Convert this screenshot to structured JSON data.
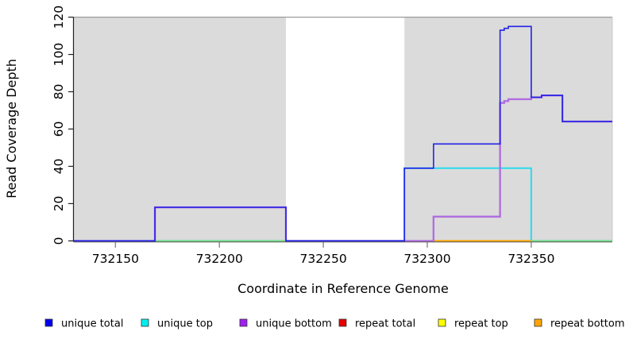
{
  "chart_data": {
    "type": "line",
    "subtype": "step-coverage",
    "title": "",
    "xlabel": "Coordinate in Reference Genome",
    "ylabel": "Read Coverage Depth",
    "xlim": [
      732130,
      732389
    ],
    "ylim": [
      0,
      120
    ],
    "x_ticks": [
      "732150",
      "732200",
      "732250",
      "732300",
      "732350"
    ],
    "x_tick_values": [
      732150,
      732200,
      732250,
      732300,
      732350
    ],
    "y_ticks": [
      "0",
      "20",
      "40",
      "60",
      "80",
      "100",
      "120"
    ],
    "y_tick_values": [
      0,
      20,
      40,
      60,
      80,
      100,
      120
    ],
    "grid": false,
    "legend_position": "bottom",
    "highlight_regions": {
      "color": "#dbdbdb",
      "ranges": [
        [
          732130,
          732232
        ],
        [
          732289,
          732389
        ]
      ]
    },
    "series": [
      {
        "name": "unique total",
        "color": "#2323e6",
        "stroke": 1.6,
        "segments": [
          [
            732130,
            732169,
            0
          ],
          [
            732169,
            732232,
            18
          ],
          [
            732232,
            732289,
            0
          ],
          [
            732289,
            732303,
            39
          ],
          [
            732303,
            732335,
            52
          ],
          [
            732335,
            732337,
            113
          ],
          [
            732337,
            732339,
            114
          ],
          [
            732339,
            732350,
            115
          ],
          [
            732350,
            732355,
            77
          ],
          [
            732355,
            732365,
            78
          ],
          [
            732365,
            732389,
            64
          ]
        ]
      },
      {
        "name": "unique top",
        "color": "#35dcec",
        "stroke": 2.2,
        "segments": [
          [
            732130,
            732289,
            0
          ],
          [
            732289,
            732350,
            39
          ],
          [
            732350,
            732389,
            0
          ]
        ]
      },
      {
        "name": "unique bottom",
        "color": "#b06fdf",
        "stroke": 2.4,
        "segments": [
          [
            732130,
            732169,
            0
          ],
          [
            732169,
            732232,
            18
          ],
          [
            732232,
            732303,
            0
          ],
          [
            732303,
            732335,
            13
          ],
          [
            732335,
            732337,
            74
          ],
          [
            732337,
            732339,
            75
          ],
          [
            732339,
            732350,
            76
          ],
          [
            732350,
            732355,
            77
          ],
          [
            732355,
            732365,
            78
          ],
          [
            732365,
            732389,
            64
          ]
        ]
      },
      {
        "name": "repeat total",
        "color": "#e60000",
        "stroke": 1.2,
        "segments": [
          [
            732130,
            732389,
            0
          ]
        ]
      },
      {
        "name": "repeat top",
        "color": "#ffff00",
        "stroke": 1.2,
        "segments": [
          [
            732130,
            732389,
            0
          ]
        ]
      },
      {
        "name": "repeat bottom",
        "color": "#ffa500",
        "stroke": 1.2,
        "segments": [
          [
            732130,
            732389,
            0
          ]
        ]
      }
    ],
    "baseline_overlays": [
      {
        "from": 732169,
        "to": 732232,
        "color": "#86dc86"
      },
      {
        "from": 732303,
        "to": 732350,
        "color": "#ffa500"
      },
      {
        "from": 732350,
        "to": 732389,
        "color": "#86dc86"
      }
    ]
  },
  "legend": {
    "items": [
      {
        "label": "unique total",
        "color": "#0000ee"
      },
      {
        "label": "unique top",
        "color": "#00efef"
      },
      {
        "label": "unique bottom",
        "color": "#a020f0"
      },
      {
        "label": "repeat total",
        "color": "#e60000"
      },
      {
        "label": "repeat top",
        "color": "#ffff00"
      },
      {
        "label": "repeat bottom",
        "color": "#ffa500"
      }
    ]
  }
}
